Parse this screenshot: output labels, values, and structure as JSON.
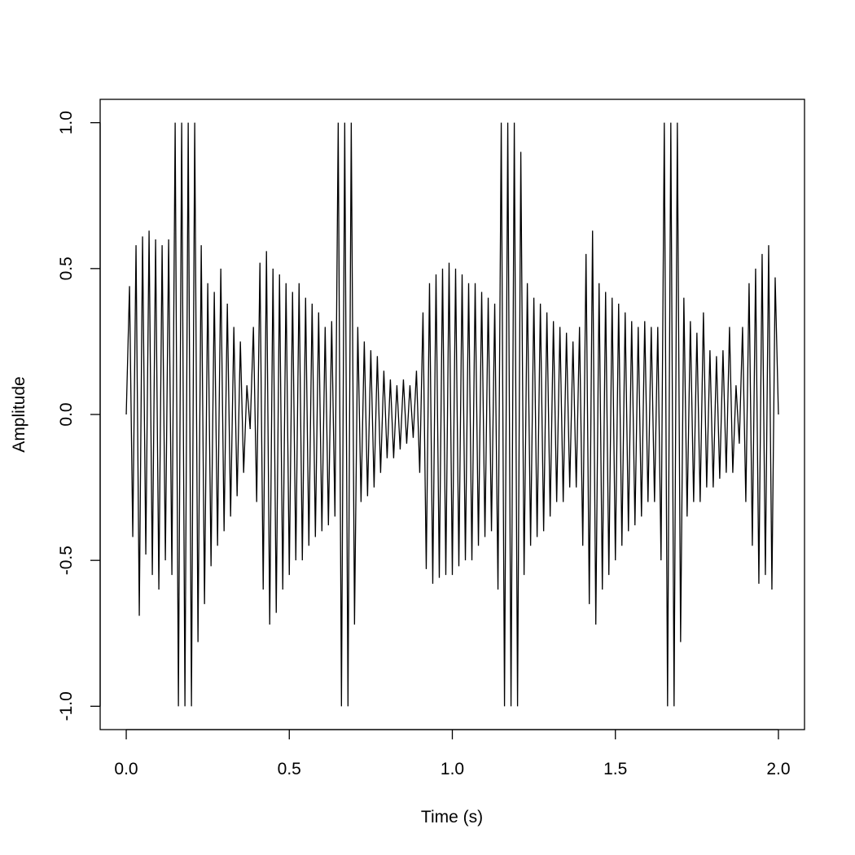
{
  "chart_data": {
    "type": "line",
    "x_label": "Time (s)",
    "y_label": "Amplitude",
    "x": [
      0,
      0.01,
      0.02,
      0.03,
      0.04,
      0.05,
      0.06,
      0.07,
      0.08,
      0.09,
      0.1,
      0.11,
      0.12,
      0.13,
      0.14,
      0.15,
      0.16,
      0.17,
      0.18,
      0.19,
      0.2,
      0.21,
      0.22,
      0.23,
      0.24,
      0.25,
      0.26,
      0.27,
      0.28,
      0.29,
      0.3,
      0.31,
      0.32,
      0.33,
      0.34,
      0.35,
      0.36,
      0.37,
      0.38,
      0.39,
      0.4,
      0.41,
      0.42,
      0.43,
      0.44,
      0.45,
      0.46,
      0.47,
      0.48,
      0.49,
      0.5,
      0.51,
      0.52,
      0.53,
      0.54,
      0.55,
      0.56,
      0.57,
      0.58,
      0.59,
      0.6,
      0.61,
      0.62,
      0.63,
      0.64,
      0.65,
      0.66,
      0.67,
      0.68,
      0.69,
      0.7,
      0.71,
      0.72,
      0.73,
      0.74,
      0.75,
      0.76,
      0.77,
      0.78,
      0.79,
      0.8,
      0.81,
      0.82,
      0.83,
      0.84,
      0.85,
      0.86,
      0.87,
      0.88,
      0.89,
      0.9,
      0.91,
      0.92,
      0.93,
      0.94,
      0.95,
      0.96,
      0.97,
      0.98,
      0.99,
      1,
      1.01,
      1.02,
      1.03,
      1.04,
      1.05,
      1.06,
      1.07,
      1.08,
      1.09,
      1.1,
      1.11,
      1.12,
      1.13,
      1.14,
      1.15,
      1.16,
      1.17,
      1.18,
      1.19,
      1.2,
      1.21,
      1.22,
      1.23,
      1.24,
      1.25,
      1.26,
      1.27,
      1.28,
      1.29,
      1.3,
      1.31,
      1.32,
      1.33,
      1.34,
      1.35,
      1.36,
      1.37,
      1.38,
      1.39,
      1.4,
      1.41,
      1.42,
      1.43,
      1.44,
      1.45,
      1.46,
      1.47,
      1.48,
      1.49,
      1.5,
      1.51,
      1.52,
      1.53,
      1.54,
      1.55,
      1.56,
      1.57,
      1.58,
      1.59,
      1.6,
      1.61,
      1.62,
      1.63,
      1.64,
      1.65,
      1.66,
      1.67,
      1.68,
      1.69,
      1.7,
      1.71,
      1.72,
      1.73,
      1.74,
      1.75,
      1.76,
      1.77,
      1.78,
      1.79,
      1.8,
      1.81,
      1.82,
      1.83,
      1.84,
      1.85,
      1.86,
      1.87,
      1.88,
      1.89,
      1.9,
      1.91,
      1.92,
      1.93,
      1.94,
      1.95,
      1.96,
      1.97,
      1.98,
      1.99,
      2
    ],
    "series": [
      {
        "color": "#000000",
        "values": [
          0,
          0.44,
          -0.42,
          0.58,
          -0.69,
          0.61,
          -0.48,
          0.63,
          -0.55,
          0.6,
          -0.6,
          0.58,
          -0.5,
          0.6,
          -0.55,
          1,
          -1,
          1,
          -1,
          1,
          -1,
          1,
          -0.78,
          0.58,
          -0.65,
          0.45,
          -0.52,
          0.42,
          -0.45,
          0.5,
          -0.4,
          0.38,
          -0.35,
          0.3,
          -0.28,
          0.25,
          -0.2,
          0.1,
          -0.05,
          0.3,
          -0.3,
          0.52,
          -0.6,
          0.56,
          -0.72,
          0.5,
          -0.68,
          0.48,
          -0.6,
          0.45,
          -0.55,
          0.42,
          -0.5,
          0.45,
          -0.5,
          0.4,
          -0.45,
          0.38,
          -0.42,
          0.35,
          -0.4,
          0.3,
          -0.38,
          0.32,
          -0.35,
          1,
          -1,
          1,
          -1,
          1,
          -0.72,
          0.3,
          -0.3,
          0.25,
          -0.28,
          0.22,
          -0.25,
          0.2,
          -0.2,
          0.15,
          -0.15,
          0.12,
          -0.15,
          0.1,
          -0.12,
          0.12,
          -0.1,
          0.1,
          -0.08,
          0.15,
          -0.2,
          0.35,
          -0.53,
          0.45,
          -0.58,
          0.48,
          -0.56,
          0.5,
          -0.55,
          0.52,
          -0.55,
          0.5,
          -0.52,
          0.48,
          -0.5,
          0.45,
          -0.5,
          0.45,
          -0.45,
          0.42,
          -0.42,
          0.4,
          -0.4,
          0.38,
          -0.6,
          1,
          -1,
          1,
          -1,
          1,
          -1,
          0.9,
          -0.55,
          0.45,
          -0.45,
          0.4,
          -0.42,
          0.38,
          -0.4,
          0.35,
          -0.35,
          0.32,
          -0.3,
          0.3,
          -0.3,
          0.28,
          -0.25,
          0.25,
          -0.25,
          0.3,
          -0.45,
          0.55,
          -0.65,
          0.63,
          -0.72,
          0.45,
          -0.6,
          0.42,
          -0.55,
          0.4,
          -0.5,
          0.38,
          -0.45,
          0.35,
          -0.4,
          0.32,
          -0.38,
          0.3,
          -0.35,
          0.32,
          -0.3,
          0.3,
          -0.3,
          0.3,
          -0.5,
          1,
          -1,
          1,
          -1,
          1,
          -0.78,
          0.4,
          -0.35,
          0.32,
          -0.3,
          0.28,
          -0.3,
          0.35,
          -0.25,
          0.22,
          -0.25,
          0.2,
          -0.22,
          0.22,
          -0.2,
          0.3,
          -0.2,
          0.1,
          -0.1,
          0.3,
          -0.3,
          0.45,
          -0.45,
          0.5,
          -0.58,
          0.55,
          -0.55,
          0.58,
          -0.6,
          0.47,
          0
        ]
      }
    ],
    "xlim": [
      -0.08,
      2.08
    ],
    "ylim": [
      -1.08,
      1.08
    ],
    "xticks": [
      {
        "value": 0,
        "label": "0.0"
      },
      0.5,
      {
        "value": 1,
        "label": "1.0"
      },
      1.5,
      {
        "value": 2,
        "label": "2.0"
      }
    ],
    "yticks": [
      {
        "value": -1,
        "label": "-1.0"
      },
      -0.5,
      {
        "value": 0,
        "label": "0.0"
      },
      0.5,
      {
        "value": 1,
        "label": "1.0"
      }
    ],
    "grid": false
  }
}
